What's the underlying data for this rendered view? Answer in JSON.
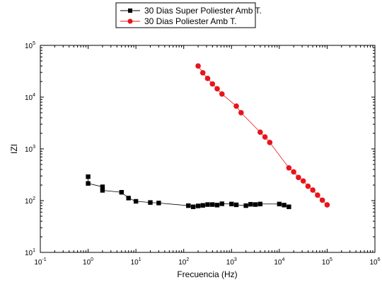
{
  "chart_data": {
    "type": "scatter",
    "xlabel": "Frecuencia (Hz)",
    "ylabel": "IZI",
    "xscale": "log",
    "yscale": "log",
    "xlim": [
      0.1,
      1000000
    ],
    "ylim": [
      10,
      100000
    ],
    "x_tick_labels": [
      {
        "base": "10",
        "exp": "-1",
        "value": 0.1
      },
      {
        "base": "10",
        "exp": "0",
        "value": 1
      },
      {
        "base": "10",
        "exp": "1",
        "value": 10
      },
      {
        "base": "10",
        "exp": "2",
        "value": 100
      },
      {
        "base": "10",
        "exp": "3",
        "value": 1000
      },
      {
        "base": "10",
        "exp": "4",
        "value": 10000
      },
      {
        "base": "10",
        "exp": "5",
        "value": 100000
      },
      {
        "base": "10",
        "exp": "6",
        "value": 1000000
      }
    ],
    "y_tick_labels": [
      {
        "base": "10",
        "exp": "1",
        "value": 10
      },
      {
        "base": "10",
        "exp": "2",
        "value": 100
      },
      {
        "base": "10",
        "exp": "3",
        "value": 1000
      },
      {
        "base": "10",
        "exp": "4",
        "value": 10000
      },
      {
        "base": "10",
        "exp": "5",
        "value": 100000
      }
    ],
    "legend_position": "top-center, outside plot",
    "grid": false,
    "series": [
      {
        "name": "30 Dias Super Poliester Amb T.",
        "marker": "square",
        "color": "#000000",
        "points": [
          [
            1,
            290
          ],
          [
            1,
            215
          ],
          [
            2,
            185
          ],
          [
            2,
            158
          ],
          [
            5,
            145
          ],
          [
            7,
            112
          ],
          [
            10,
            97
          ],
          [
            20,
            92
          ],
          [
            30,
            90
          ],
          [
            125,
            80
          ],
          [
            158,
            76
          ],
          [
            200,
            79
          ],
          [
            251,
            81
          ],
          [
            316,
            84
          ],
          [
            398,
            84
          ],
          [
            501,
            82
          ],
          [
            631,
            87
          ],
          [
            1000,
            86
          ],
          [
            1259,
            83
          ],
          [
            2000,
            80
          ],
          [
            2512,
            85
          ],
          [
            3162,
            84
          ],
          [
            3981,
            86
          ],
          [
            10000,
            86
          ],
          [
            12589,
            82
          ],
          [
            15849,
            76
          ]
        ]
      },
      {
        "name": "30 Dias Poliester Amb T.",
        "marker": "circle",
        "color": "#e8141b",
        "points": [
          [
            200,
            40000
          ],
          [
            251,
            29500
          ],
          [
            316,
            23000
          ],
          [
            398,
            18000
          ],
          [
            501,
            14500
          ],
          [
            631,
            11500
          ],
          [
            1259,
            6700
          ],
          [
            1585,
            5000
          ],
          [
            3981,
            2100
          ],
          [
            5012,
            1700
          ],
          [
            6310,
            1330
          ],
          [
            15849,
            430
          ],
          [
            19953,
            360
          ],
          [
            25119,
            280
          ],
          [
            31623,
            240
          ],
          [
            39811,
            190
          ],
          [
            50119,
            160
          ],
          [
            63096,
            128
          ],
          [
            79433,
            102
          ],
          [
            100000,
            83
          ]
        ]
      }
    ]
  }
}
